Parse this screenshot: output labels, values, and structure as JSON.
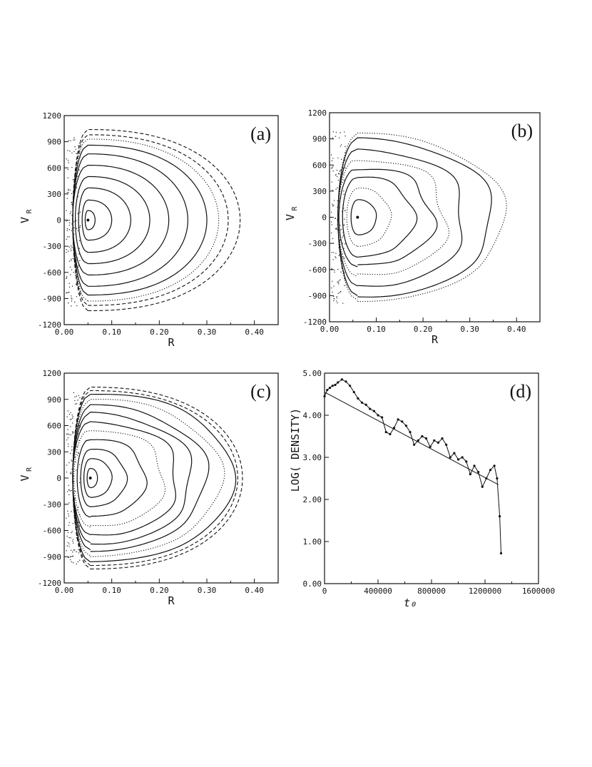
{
  "chart_data": [
    {
      "panel": "(a)",
      "type": "scatter",
      "xlabel": "R",
      "ylabel_main": "V",
      "ylabel_sub": "R",
      "xlim": [
        0,
        0.45
      ],
      "ylim": [
        -1200,
        1200
      ],
      "xticks": [
        "0.00",
        "0.10",
        "0.20",
        "0.30",
        "0.40"
      ],
      "xtick_values": [
        0,
        0.1,
        0.2,
        0.3,
        0.4
      ],
      "yticks": [
        "1200",
        "900",
        "600",
        "300",
        "0",
        "-300",
        "-600",
        "-900",
        "-1200"
      ],
      "ytick_values": [
        1200,
        900,
        600,
        300,
        0,
        -300,
        -600,
        -900,
        -1200
      ],
      "center": [
        0.05,
        0
      ],
      "orbits": [
        {
          "vmax": 110,
          "rmax": 0.065,
          "style": "solid"
        },
        {
          "vmax": 230,
          "rmax": 0.1,
          "style": "solid"
        },
        {
          "vmax": 370,
          "rmax": 0.14,
          "style": "solid"
        },
        {
          "vmax": 500,
          "rmax": 0.18,
          "style": "solid"
        },
        {
          "vmax": 630,
          "rmax": 0.22,
          "style": "solid"
        },
        {
          "vmax": 760,
          "rmax": 0.26,
          "style": "solid"
        },
        {
          "vmax": 860,
          "rmax": 0.3,
          "style": "solid"
        },
        {
          "vmax": 930,
          "rmax": 0.325,
          "style": "dotted"
        },
        {
          "vmax": 980,
          "rmax": 0.345,
          "style": "dashed"
        },
        {
          "vmax": 1040,
          "rmax": 0.37,
          "style": "dashed"
        }
      ]
    },
    {
      "panel": "(b)",
      "type": "scatter",
      "xlabel": "R",
      "ylabel_main": "V",
      "ylabel_sub": "R",
      "xlim": [
        0,
        0.45
      ],
      "ylim": [
        -1200,
        1200
      ],
      "xticks": [
        "0.00",
        "0.10",
        "0.20",
        "0.30",
        "0.40"
      ],
      "xtick_values": [
        0,
        0.1,
        0.2,
        0.3,
        0.4
      ],
      "yticks": [
        "1200",
        "900",
        "600",
        "300",
        "0",
        "-300",
        "-600",
        "-900",
        "-1200"
      ],
      "ytick_values": [
        1200,
        900,
        600,
        300,
        0,
        -300,
        -600,
        -900,
        -1200
      ],
      "center": [
        0.06,
        0
      ],
      "orbits": [
        {
          "vmax": 200,
          "rmax": 0.1,
          "style": "solid",
          "wobble": 0.02
        },
        {
          "vmax": 330,
          "rmax": 0.13,
          "style": "dotted",
          "wobble": 0.04
        },
        {
          "vmax": 460,
          "rmax": 0.18,
          "style": "solid",
          "wobble": 0.06
        },
        {
          "vmax": 570,
          "rmax": 0.22,
          "style": "solid",
          "wobble": 0.08
        },
        {
          "vmax": 680,
          "rmax": 0.25,
          "style": "dotted",
          "wobble": 0.08
        },
        {
          "vmax": 790,
          "rmax": 0.29,
          "style": "solid",
          "wobble": 0.06
        },
        {
          "vmax": 900,
          "rmax": 0.35,
          "style": "solid",
          "wobble": 0.04
        },
        {
          "vmax": 950,
          "rmax": 0.375,
          "style": "dotted",
          "wobble": 0.03
        }
      ]
    },
    {
      "panel": "(c)",
      "type": "scatter",
      "xlabel": "R",
      "ylabel_main": "V",
      "ylabel_sub": "R",
      "xlim": [
        0,
        0.45
      ],
      "ylim": [
        -1200,
        1200
      ],
      "xticks": [
        "0.00",
        "0.10",
        "0.20",
        "0.30",
        "0.40"
      ],
      "xtick_values": [
        0,
        0.1,
        0.2,
        0.3,
        0.4
      ],
      "yticks": [
        "1200",
        "900",
        "600",
        "300",
        "0",
        "-300",
        "-600",
        "-900",
        "-1200"
      ],
      "ytick_values": [
        1200,
        900,
        600,
        300,
        0,
        -300,
        -600,
        -900,
        -1200
      ],
      "center": [
        0.055,
        0
      ],
      "orbits": [
        {
          "vmax": 110,
          "rmax": 0.07,
          "style": "solid",
          "wobble": 0
        },
        {
          "vmax": 220,
          "rmax": 0.1,
          "style": "solid",
          "wobble": 0.02
        },
        {
          "vmax": 330,
          "rmax": 0.13,
          "style": "solid",
          "wobble": 0.04
        },
        {
          "vmax": 450,
          "rmax": 0.17,
          "style": "solid",
          "wobble": 0.05
        },
        {
          "vmax": 560,
          "rmax": 0.21,
          "style": "dotted",
          "wobble": 0.06
        },
        {
          "vmax": 650,
          "rmax": 0.24,
          "style": "solid",
          "wobble": 0.06
        },
        {
          "vmax": 740,
          "rmax": 0.27,
          "style": "solid",
          "wobble": 0.05
        },
        {
          "vmax": 820,
          "rmax": 0.3,
          "style": "solid",
          "wobble": 0.04
        },
        {
          "vmax": 890,
          "rmax": 0.33,
          "style": "dotted",
          "wobble": 0.03
        },
        {
          "vmax": 960,
          "rmax": 0.355,
          "style": "solid",
          "wobble": 0.02
        },
        {
          "vmax": 1000,
          "rmax": 0.365,
          "style": "dashed",
          "wobble": 0
        },
        {
          "vmax": 1040,
          "rmax": 0.375,
          "style": "dashed",
          "wobble": 0
        }
      ]
    },
    {
      "panel": "(d)",
      "type": "line",
      "ylabel": "LOG( DENSITY)",
      "xlabel": "t₀",
      "xlim": [
        0,
        1600000
      ],
      "ylim": [
        0,
        5
      ],
      "xticks": [
        "0",
        "400000",
        "800000",
        "1200000",
        "1600000"
      ],
      "xtick_values": [
        0,
        400000,
        800000,
        1200000,
        1600000
      ],
      "yticks": [
        "5.00",
        "4.00",
        "3.00",
        "2.00",
        "1.00",
        "0.00"
      ],
      "ytick_values": [
        5,
        4,
        3,
        2,
        1,
        0
      ],
      "series": [
        {
          "x": [
            0,
            20000,
            40000,
            60000,
            80000,
            100000,
            130000,
            160000,
            190000,
            220000,
            250000,
            280000,
            310000,
            340000,
            370000,
            400000,
            430000,
            460000,
            490000,
            520000,
            550000,
            580000,
            610000,
            640000,
            670000,
            700000,
            730000,
            760000,
            790000,
            820000,
            850000,
            880000,
            910000,
            940000,
            970000,
            1000000,
            1030000,
            1060000,
            1090000,
            1120000,
            1150000,
            1180000,
            1210000,
            1240000,
            1270000,
            1290000,
            1310000,
            1320000
          ],
          "y": [
            4.45,
            4.6,
            4.65,
            4.7,
            4.72,
            4.78,
            4.85,
            4.8,
            4.7,
            4.55,
            4.4,
            4.3,
            4.25,
            4.15,
            4.1,
            4.0,
            3.95,
            3.6,
            3.55,
            3.7,
            3.9,
            3.85,
            3.75,
            3.6,
            3.3,
            3.4,
            3.5,
            3.45,
            3.25,
            3.4,
            3.35,
            3.45,
            3.3,
            3.0,
            3.1,
            2.95,
            3.0,
            2.9,
            2.6,
            2.8,
            2.65,
            2.3,
            2.5,
            2.7,
            2.8,
            2.5,
            1.6,
            0.72
          ]
        }
      ],
      "fit": {
        "x": [
          0,
          1300000
        ],
        "y": [
          4.55,
          2.35
        ]
      }
    }
  ]
}
